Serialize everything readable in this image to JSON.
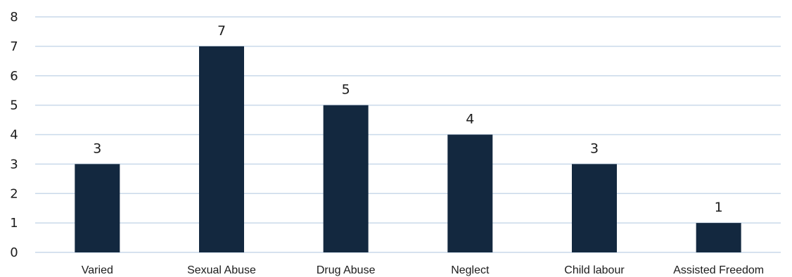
{
  "chart_data": {
    "type": "bar",
    "title": "",
    "xlabel": "",
    "ylabel": "",
    "categories": [
      "Varied",
      "Sexual Abuse",
      "Drug Abuse",
      "Neglect",
      "Child labour",
      "Assisted Freedom"
    ],
    "values": [
      3,
      7,
      5,
      4,
      3,
      1
    ],
    "ylim": [
      0,
      8
    ],
    "yticks": [
      0,
      1,
      2,
      3,
      4,
      5,
      6,
      7,
      8
    ],
    "grid": true,
    "data_labels": true,
    "legend": "none",
    "bar_color": "#13283f",
    "grid_color": "#c9d9ea"
  }
}
